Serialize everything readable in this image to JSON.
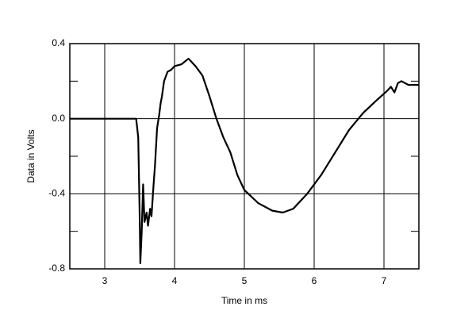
{
  "chart_data": {
    "type": "line",
    "xlabel": "Time in ms",
    "ylabel": "Data in Volts",
    "x": [
      2.5,
      3.45,
      3.48,
      3.5,
      3.51,
      3.53,
      3.55,
      3.57,
      3.6,
      3.62,
      3.65,
      3.67,
      3.7,
      3.72,
      3.75,
      3.78,
      3.8,
      3.82,
      3.85,
      3.9,
      3.95,
      4.0,
      4.1,
      4.2,
      4.3,
      4.4,
      4.5,
      4.6,
      4.7,
      4.8,
      4.9,
      5.0,
      5.2,
      5.4,
      5.55,
      5.7,
      5.9,
      6.1,
      6.3,
      6.5,
      6.7,
      6.9,
      7.05,
      7.1,
      7.15,
      7.2,
      7.25,
      7.35,
      7.5
    ],
    "values": [
      0,
      0,
      -0.1,
      -0.5,
      -0.77,
      -0.6,
      -0.35,
      -0.55,
      -0.5,
      -0.57,
      -0.48,
      -0.52,
      -0.35,
      -0.25,
      -0.05,
      0.02,
      0.08,
      0.12,
      0.2,
      0.25,
      0.26,
      0.28,
      0.29,
      0.32,
      0.28,
      0.23,
      0.12,
      0.0,
      -0.1,
      -0.18,
      -0.3,
      -0.38,
      -0.45,
      -0.49,
      -0.5,
      -0.48,
      -0.4,
      -0.3,
      -0.18,
      -0.06,
      0.03,
      0.1,
      0.15,
      0.17,
      0.14,
      0.19,
      0.2,
      0.18,
      0.18
    ],
    "color": "#000000",
    "xlim": [
      2.5,
      7.5
    ],
    "xticks": [
      3,
      4,
      5,
      6,
      7
    ],
    "ylim": [
      -0.8,
      0.4
    ],
    "yticks": [
      -0.8,
      -0.4,
      {
        "value": 0,
        "label": "0.0"
      },
      0.4
    ],
    "yminorticks": [
      -0.6,
      -0.2,
      0.2
    ],
    "grid": true
  }
}
